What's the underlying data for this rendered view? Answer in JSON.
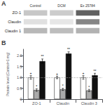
{
  "chart_data": [
    {
      "type": "blot",
      "title": "A",
      "categories": [
        "Control",
        "DCM",
        "Ex 25784"
      ],
      "rows": [
        "ZO-1",
        "Claudin",
        "Claudin 1"
      ],
      "colors": [
        [
          "#c7c7c7",
          "#cccccc",
          "#616161"
        ],
        [
          "#e0e0e0",
          "#e6e6e6",
          "#858585"
        ],
        [
          "#b8b8b8",
          "#bdbdbd",
          "#b2b2b2"
        ]
      ]
    },
    {
      "type": "bar",
      "title": "B",
      "categories": [
        "ZO-1",
        "Claudin",
        "Claudin 3"
      ],
      "ylabel": "Protein level (Control=1 mg)",
      "ylim": [
        0,
        2.3
      ],
      "yticks": [
        0,
        0.5,
        {
          "value": 1.0,
          "label": "1.0"
        },
        1.5,
        {
          "value": 2.0,
          "label": "2.0"
        }
      ],
      "grid": false,
      "reference_line": 1.0,
      "series": [
        {
          "color": "#ffffff",
          "values": [
            1.0,
            1.0,
            1.0
          ],
          "errors": [
            0.08,
            0.06,
            0.08
          ],
          "annotations": [
            "+",
            "+",
            "+"
          ]
        },
        {
          "color": "#aaaaaa",
          "values": [
            0.42,
            0.45,
            0.4
          ],
          "errors": [
            0.06,
            0.05,
            0.05
          ],
          "annotations": [
            "*",
            "*",
            "*"
          ]
        },
        {
          "color": "#111111",
          "values": [
            1.75,
            2.1,
            1.1
          ],
          "errors": [
            0.1,
            0.08,
            0.09
          ],
          "annotations": [
            "**",
            "**",
            "**"
          ]
        }
      ]
    }
  ]
}
